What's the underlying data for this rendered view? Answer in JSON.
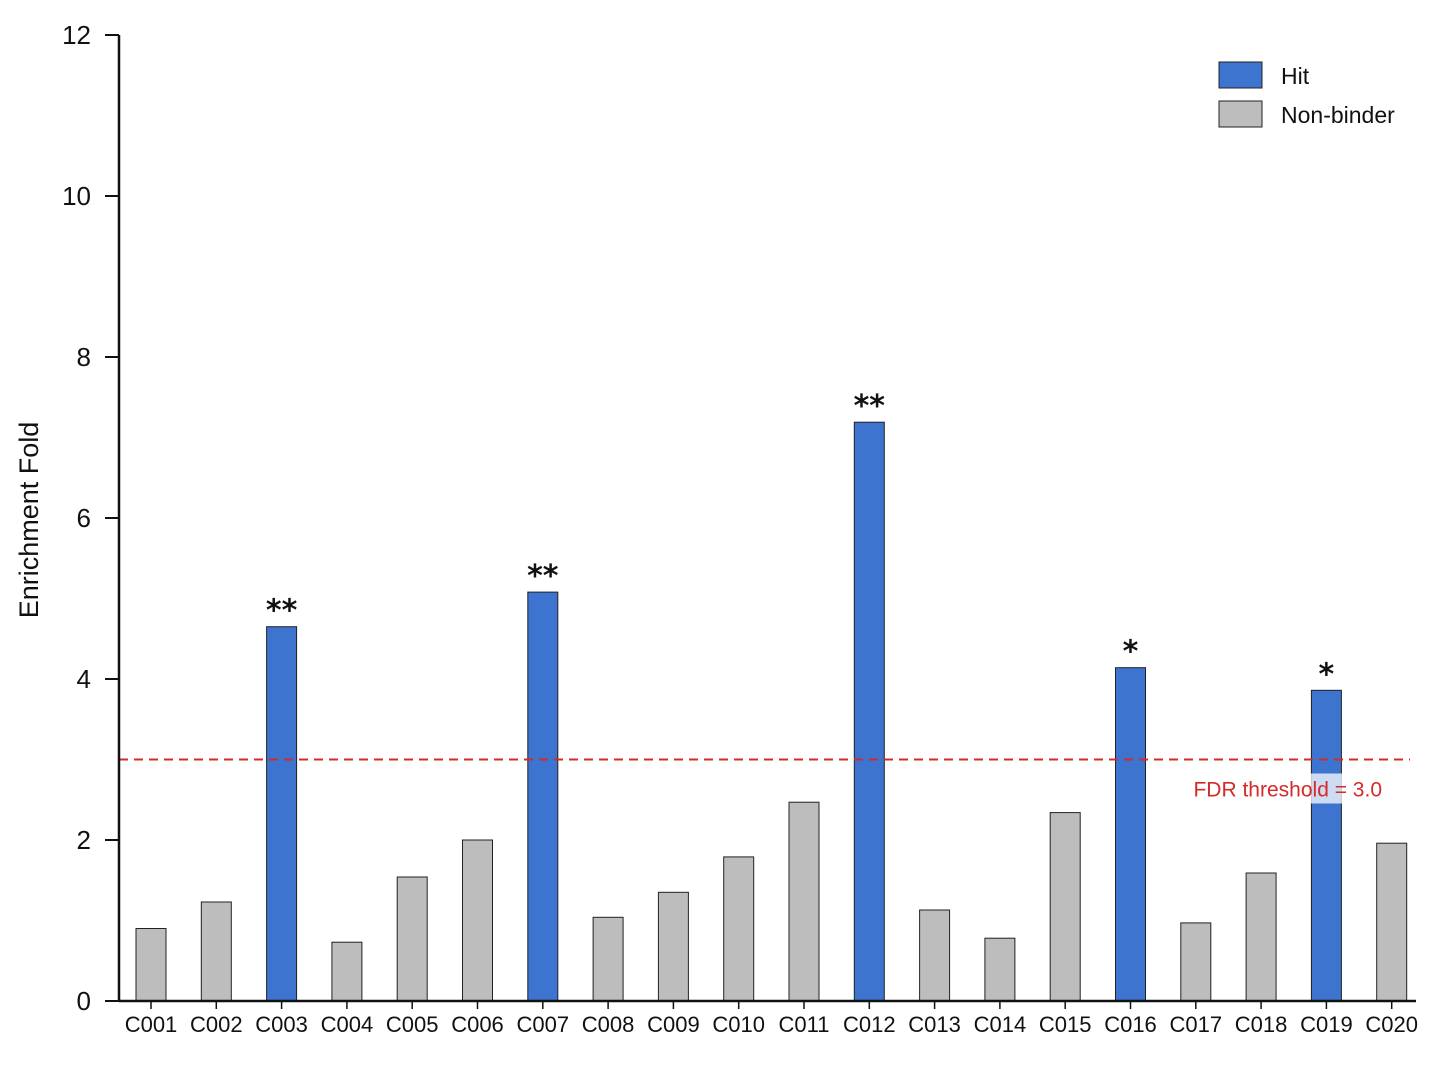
{
  "chart_data": {
    "type": "bar",
    "title": "",
    "xlabel": "",
    "ylabel": "Enrichment Fold",
    "ylim": [
      0,
      12
    ],
    "yticks": [
      0,
      2,
      4,
      6,
      8,
      10,
      12
    ],
    "grid": false,
    "categories": [
      "C001",
      "C002",
      "C003",
      "C004",
      "C005",
      "C006",
      "C007",
      "C008",
      "C009",
      "C010",
      "C011",
      "C012",
      "C013",
      "C014",
      "C015",
      "C016",
      "C017",
      "C018",
      "C019",
      "C020"
    ],
    "values": [
      0.9,
      1.23,
      4.65,
      0.73,
      1.54,
      2.0,
      5.08,
      1.04,
      1.35,
      1.79,
      2.47,
      7.19,
      1.13,
      0.78,
      2.34,
      4.14,
      0.97,
      1.59,
      3.86,
      1.96
    ],
    "status": [
      "Non-binder",
      "Non-binder",
      "Hit",
      "Non-binder",
      "Non-binder",
      "Non-binder",
      "Hit",
      "Non-binder",
      "Non-binder",
      "Non-binder",
      "Non-binder",
      "Hit",
      "Non-binder",
      "Non-binder",
      "Non-binder",
      "Hit",
      "Non-binder",
      "Non-binder",
      "Hit",
      "Non-binder"
    ],
    "significance": [
      "",
      "",
      "**",
      "",
      "",
      "",
      "**",
      "",
      "",
      "",
      "",
      "**",
      "",
      "",
      "",
      "*",
      "",
      "",
      "*",
      ""
    ],
    "legend": {
      "placement": "top-right",
      "entries": [
        {
          "name": "Hit",
          "color": "#3d74cf"
        },
        {
          "name": "Non-binder",
          "color": "#bdbdbd"
        }
      ]
    },
    "threshold": {
      "value": 3.0,
      "label": "FDR threshold = 3.0",
      "color": "#d42a2a",
      "style": "dashed"
    },
    "colors": {
      "Hit": "#3d74cf",
      "Non-binder": "#bdbdbd",
      "edge": "#222222"
    }
  }
}
